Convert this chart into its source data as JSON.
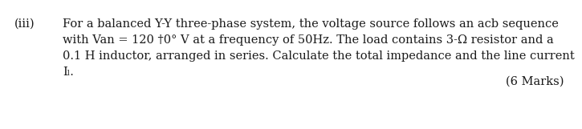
{
  "label": "(iii)",
  "line1": "For a balanced Y-Y three-phase system, the voltage source follows an acb sequence",
  "line2": "with Van = 120 †0° V at a frequency of 50Hz. The load contains 3-Ω resistor and a",
  "line3": "0.1 H inductor, arranged in series. Calculate the total impedance and the line current",
  "line4": "Iₗ.",
  "marks": "(6 Marks)",
  "bg_color": "#ffffff",
  "text_color": "#1a1a1a",
  "font_size": 10.5,
  "font_family": "DejaVu Serif"
}
